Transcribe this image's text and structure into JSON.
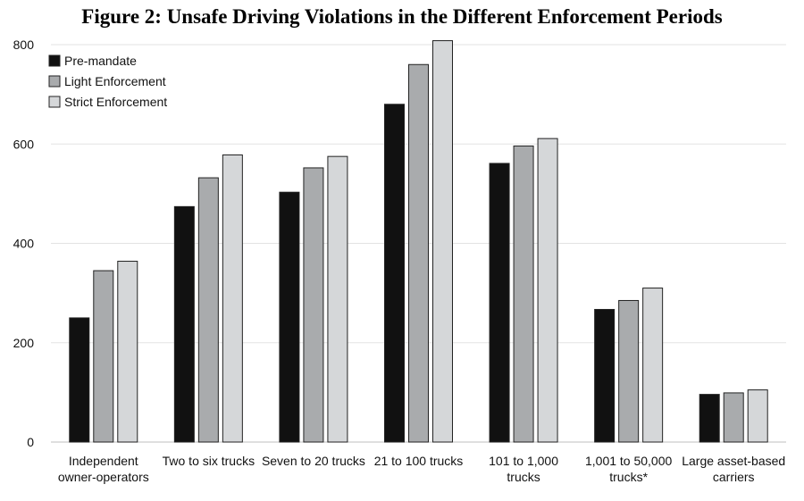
{
  "chart_data": {
    "type": "bar",
    "title": "Figure 2: Unsafe Driving Violations in the Different Enforcement Periods",
    "categories": [
      [
        "Independent",
        "owner-operators"
      ],
      [
        "Two to six trucks"
      ],
      [
        "Seven to 20 trucks"
      ],
      [
        "21 to 100 trucks"
      ],
      [
        "101 to 1,000",
        "trucks"
      ],
      [
        "1,001 to 50,000",
        "trucks*"
      ],
      [
        "Large asset-based",
        "carriers"
      ]
    ],
    "series": [
      {
        "name": "Pre-mandate",
        "color": "#111111",
        "values": [
          250,
          474,
          503,
          680,
          561,
          267,
          96
        ]
      },
      {
        "name": "Light Enforcement",
        "color": "#a9abad",
        "values": [
          345,
          532,
          552,
          760,
          596,
          285,
          99
        ]
      },
      {
        "name": "Strict Enforcement",
        "color": "#d5d7d9",
        "values": [
          364,
          578,
          575,
          808,
          611,
          310,
          105
        ]
      }
    ],
    "ylim": [
      0,
      800
    ],
    "yticks": [
      0,
      200,
      400,
      600,
      800
    ],
    "grid": true,
    "legend_position": "top-left"
  }
}
